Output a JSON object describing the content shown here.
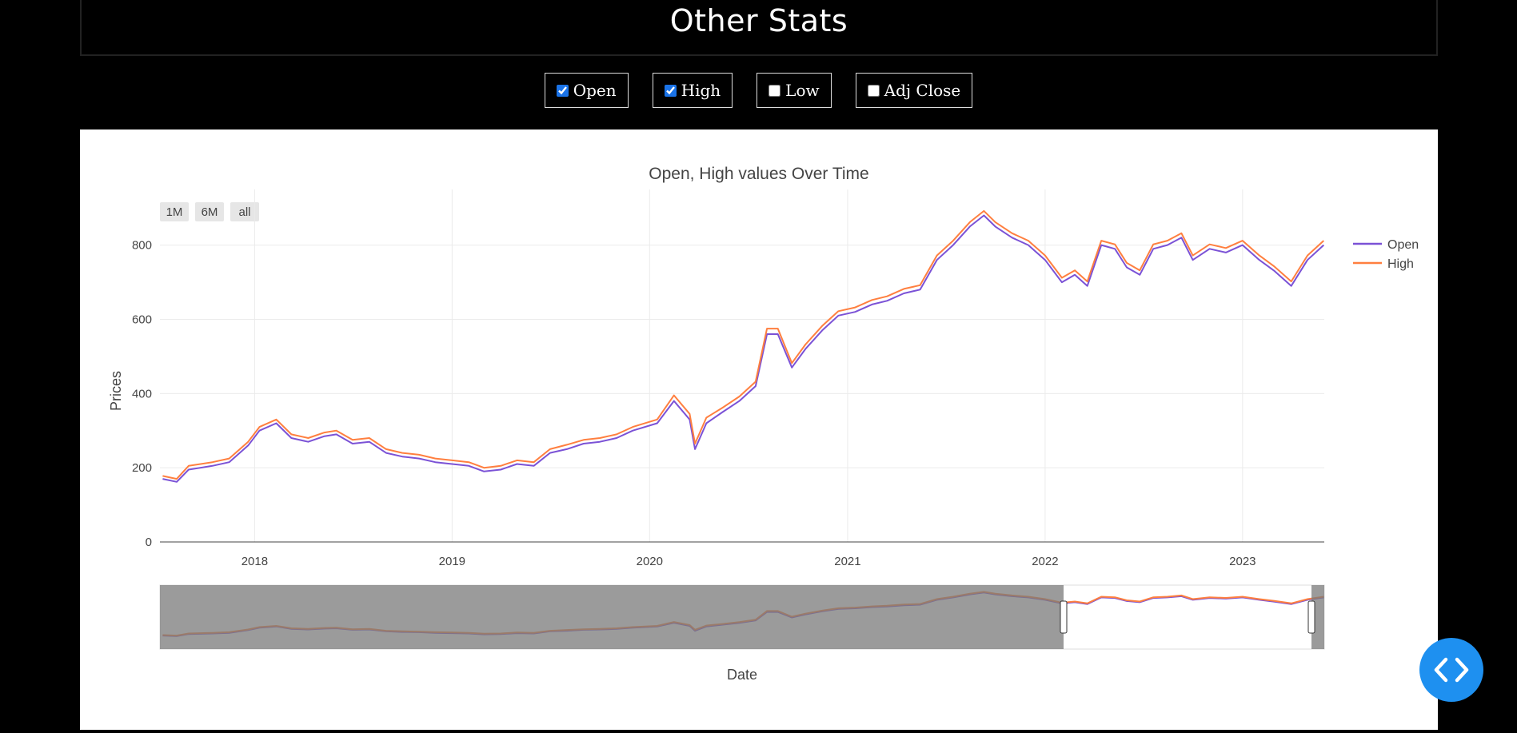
{
  "page": {
    "title": "Other Stats"
  },
  "toggles": [
    {
      "label": "Open",
      "checked": true
    },
    {
      "label": "High",
      "checked": true
    },
    {
      "label": "Low",
      "checked": false
    },
    {
      "label": "Adj Close",
      "checked": false
    }
  ],
  "range_buttons": [
    "1M",
    "6M",
    "all"
  ],
  "chart_data": {
    "type": "line",
    "title": "Open, High values Over Time",
    "xlabel": "Date",
    "ylabel": "Prices",
    "xlim": [
      "2017-07-10",
      "2023-06-01"
    ],
    "ylim": [
      0,
      950
    ],
    "yticks": [
      0,
      200,
      400,
      600,
      800
    ],
    "xticks": [
      "2018",
      "2019",
      "2020",
      "2021",
      "2022",
      "2023"
    ],
    "grid": true,
    "legend_position": "top-right",
    "x": [
      "2017-07-15",
      "2017-08-10",
      "2017-09-01",
      "2017-10-15",
      "2017-11-15",
      "2017-12-20",
      "2018-01-10",
      "2018-02-10",
      "2018-03-10",
      "2018-04-10",
      "2018-05-10",
      "2018-06-01",
      "2018-07-01",
      "2018-08-01",
      "2018-09-01",
      "2018-10-01",
      "2018-11-01",
      "2018-12-01",
      "2019-01-01",
      "2019-02-01",
      "2019-03-01",
      "2019-04-01",
      "2019-05-01",
      "2019-06-01",
      "2019-07-01",
      "2019-08-01",
      "2019-09-01",
      "2019-10-01",
      "2019-11-01",
      "2019-12-01",
      "2020-01-15",
      "2020-02-15",
      "2020-03-15",
      "2020-03-25",
      "2020-04-15",
      "2020-05-15",
      "2020-06-15",
      "2020-07-15",
      "2020-08-05",
      "2020-08-25",
      "2020-09-20",
      "2020-10-15",
      "2020-11-15",
      "2020-12-15",
      "2021-01-15",
      "2021-02-15",
      "2021-03-15",
      "2021-04-15",
      "2021-05-15",
      "2021-06-15",
      "2021-07-15",
      "2021-08-15",
      "2021-09-10",
      "2021-10-01",
      "2021-11-01",
      "2021-12-01",
      "2022-01-01",
      "2022-02-01",
      "2022-02-25",
      "2022-03-20",
      "2022-04-15",
      "2022-05-10",
      "2022-06-01",
      "2022-06-25",
      "2022-07-20",
      "2022-08-15",
      "2022-09-10",
      "2022-10-01",
      "2022-11-01",
      "2022-12-01",
      "2023-01-01",
      "2023-02-01",
      "2023-03-01",
      "2023-04-01",
      "2023-05-01",
      "2023-05-31"
    ],
    "series": [
      {
        "name": "Open",
        "color": "#7b52d6",
        "values": [
          170,
          162,
          195,
          205,
          215,
          260,
          300,
          320,
          280,
          270,
          285,
          290,
          265,
          270,
          240,
          230,
          225,
          215,
          210,
          205,
          190,
          195,
          210,
          205,
          240,
          250,
          265,
          270,
          280,
          300,
          320,
          380,
          330,
          250,
          320,
          350,
          380,
          420,
          560,
          560,
          470,
          520,
          570,
          610,
          620,
          640,
          650,
          670,
          680,
          760,
          800,
          850,
          880,
          850,
          820,
          800,
          760,
          700,
          720,
          690,
          800,
          790,
          740,
          720,
          790,
          800,
          820,
          760,
          790,
          780,
          800,
          760,
          730,
          690,
          760,
          800
        ]
      },
      {
        "name": "High",
        "color": "#ff7f3f",
        "values": [
          178,
          170,
          205,
          215,
          225,
          270,
          310,
          330,
          290,
          280,
          295,
          300,
          275,
          280,
          250,
          240,
          235,
          225,
          220,
          215,
          200,
          205,
          220,
          215,
          250,
          262,
          275,
          280,
          290,
          310,
          330,
          395,
          345,
          265,
          335,
          362,
          392,
          432,
          575,
          575,
          482,
          532,
          582,
          622,
          632,
          652,
          662,
          682,
          692,
          772,
          812,
          862,
          892,
          862,
          832,
          812,
          772,
          712,
          732,
          702,
          812,
          802,
          752,
          732,
          802,
          812,
          832,
          772,
          802,
          792,
          812,
          772,
          742,
          702,
          772,
          812
        ]
      }
    ]
  },
  "code_button": {
    "icon": "code-icon"
  }
}
